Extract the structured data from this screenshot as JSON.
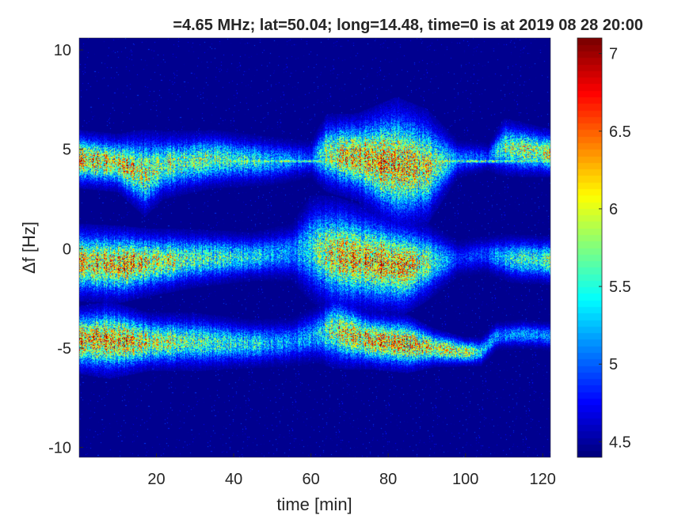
{
  "chart_data": {
    "type": "heatmap",
    "title": "=4.65 MHz;  lat=50.04; long=14.48, time=0 is at 2019 08 28 20:00",
    "xlabel": "time [min]",
    "ylabel": "Δf [Hz]",
    "xlim": [
      0,
      122
    ],
    "ylim": [
      -10.5,
      10.6
    ],
    "xticks": [
      20,
      40,
      60,
      80,
      100,
      120
    ],
    "yticks": [
      -10,
      -5,
      0,
      5,
      10
    ],
    "colorbar": {
      "colormap": "jet",
      "clim": [
        4.4,
        7.1
      ],
      "ticks": [
        4.5,
        5,
        5.5,
        6,
        6.5,
        7
      ]
    },
    "background_level": 4.45,
    "bands": [
      {
        "name": "band-upper",
        "t": [
          0,
          10,
          17,
          22,
          35,
          50,
          60,
          64,
          72,
          82,
          90,
          98,
          106,
          110,
          122
        ],
        "f": [
          4.5,
          4.3,
          3.8,
          4.2,
          4.5,
          4.4,
          4.5,
          4.8,
          4.6,
          4.2,
          4.1,
          4.5,
          4.6,
          5.1,
          4.8
        ],
        "width": [
          0.6,
          0.6,
          0.9,
          0.7,
          0.6,
          0.5,
          0.4,
          0.8,
          0.9,
          1.4,
          1.2,
          0.4,
          0.3,
          0.6,
          0.5
        ],
        "level": [
          6.6,
          6.3,
          6.2,
          5.9,
          5.8,
          5.4,
          5.0,
          5.9,
          6.5,
          6.6,
          6.2,
          5.2,
          5.0,
          5.9,
          6.1
        ]
      },
      {
        "name": "band-carrier-line",
        "t": [
          38,
          122
        ],
        "f": [
          4.4,
          4.4
        ],
        "width": [
          0.06,
          0.06
        ],
        "level": [
          5.9,
          5.9
        ]
      },
      {
        "name": "band-middle",
        "t": [
          0,
          10,
          18,
          30,
          45,
          55,
          60,
          66,
          75,
          84,
          90,
          98,
          105,
          112,
          122
        ],
        "f": [
          -0.7,
          -0.8,
          -0.7,
          -0.5,
          -0.4,
          -0.2,
          0.0,
          -0.3,
          -0.6,
          -0.9,
          -0.7,
          -0.5,
          -0.3,
          -0.5,
          -0.6
        ],
        "width": [
          0.8,
          0.8,
          0.7,
          0.6,
          0.5,
          0.6,
          1.1,
          1.2,
          1.1,
          1.0,
          0.8,
          0.4,
          0.4,
          0.5,
          0.5
        ],
        "level": [
          6.4,
          6.6,
          6.3,
          5.8,
          5.5,
          5.2,
          5.6,
          6.3,
          6.5,
          6.6,
          5.9,
          4.9,
          5.0,
          5.6,
          5.8
        ]
      },
      {
        "name": "band-lower",
        "t": [
          0,
          8,
          18,
          30,
          45,
          55,
          62,
          66,
          75,
          85,
          92,
          100,
          104,
          108,
          115,
          122
        ],
        "f": [
          -4.6,
          -4.6,
          -4.7,
          -4.7,
          -4.8,
          -4.7,
          -4.3,
          -4.1,
          -4.6,
          -4.8,
          -5.0,
          -5.2,
          -5.2,
          -4.4,
          -4.3,
          -4.4
        ],
        "width": [
          0.7,
          0.8,
          0.6,
          0.6,
          0.5,
          0.5,
          0.6,
          0.8,
          0.6,
          0.6,
          0.4,
          0.3,
          0.3,
          0.3,
          0.3,
          0.3
        ],
        "level": [
          6.6,
          6.7,
          6.2,
          5.8,
          5.5,
          5.2,
          5.4,
          6.0,
          6.5,
          6.6,
          6.1,
          6.2,
          5.5,
          5.2,
          5.3,
          5.2
        ]
      }
    ]
  }
}
